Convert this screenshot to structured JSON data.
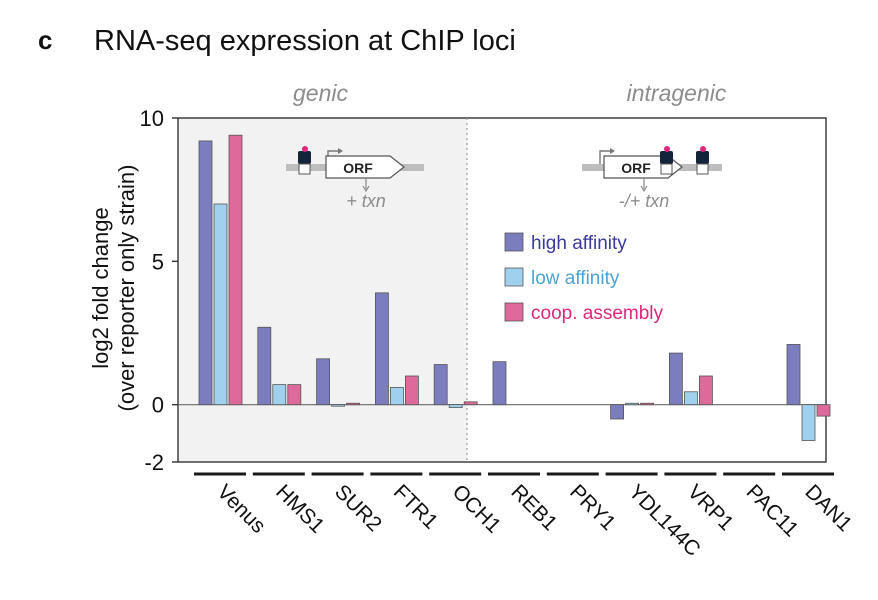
{
  "panel_letter": "c",
  "chart_data": {
    "type": "bar",
    "title": "RNA-seq expression at ChIP loci",
    "ylabel_line1": "log2  fold change",
    "ylabel_line2": "(over reporter only strain)",
    "xlabel": "",
    "ylim": [
      -2,
      10
    ],
    "yticks": [
      10,
      5,
      0,
      -2
    ],
    "regions": [
      {
        "name": "genic",
        "categories": [
          "Venus",
          "HMS1",
          "SUR2",
          "FTR1",
          "OCH1"
        ],
        "shaded": true,
        "diagram_caption": "+ txn"
      },
      {
        "name": "intragenic",
        "categories": [
          "REB1",
          "PRY1",
          "YDL144C",
          "VRP1",
          "PAC11",
          "DAN1"
        ],
        "shaded": false,
        "diagram_caption": "-/+ txn"
      }
    ],
    "diagram_label": "ORF",
    "categories": [
      "Venus",
      "HMS1",
      "SUR2",
      "FTR1",
      "OCH1",
      "REB1",
      "PRY1",
      "YDL144C",
      "VRP1",
      "PAC11",
      "DAN1"
    ],
    "series": [
      {
        "name": "high affinity",
        "color": "#7b7dbf",
        "text_color": "#3a3a9c",
        "values": [
          9.2,
          2.7,
          1.6,
          3.9,
          1.4,
          1.5,
          0.0,
          -0.5,
          1.8,
          0.0,
          2.1
        ]
      },
      {
        "name": "low affinity",
        "color": "#9fd0ee",
        "text_color": "#4aa3d8",
        "values": [
          7.0,
          0.7,
          -0.05,
          0.6,
          -0.1,
          0.0,
          0.0,
          0.05,
          0.45,
          0.0,
          -1.25
        ]
      },
      {
        "name": "coop. assembly",
        "color": "#dd6a9a",
        "text_color": "#e0267c",
        "values": [
          9.4,
          0.7,
          0.05,
          1.0,
          0.1,
          0.0,
          0.0,
          0.05,
          1.0,
          0.0,
          -0.4
        ]
      }
    ],
    "legend_position": "inside, middle-right",
    "grid": false,
    "colors": {
      "shade": "#f2f2f2",
      "axis": "#333333",
      "region_label": "#8c8c8c",
      "divider": "#9a9a9a"
    }
  }
}
